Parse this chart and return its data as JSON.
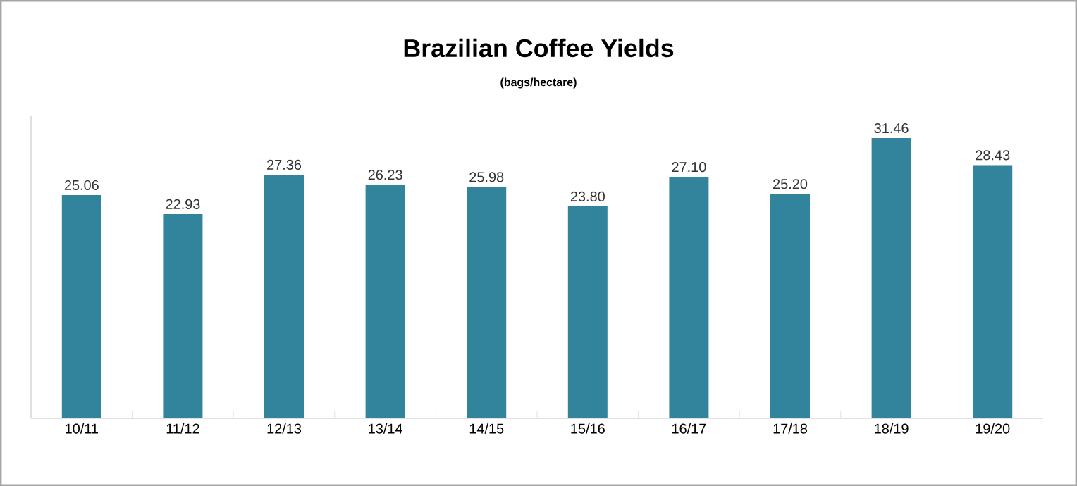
{
  "chart_data": {
    "type": "bar",
    "title": "Brazilian Coffee Yields",
    "subtitle": "(bags/hectare)",
    "categories": [
      "10/11",
      "11/12",
      "12/13",
      "13/14",
      "14/15",
      "15/16",
      "16/17",
      "17/18",
      "18/19",
      "19/20"
    ],
    "values": [
      25.06,
      22.93,
      27.36,
      26.23,
      25.98,
      23.8,
      27.1,
      25.2,
      31.46,
      28.43
    ],
    "value_labels": [
      "25.06",
      "22.93",
      "27.36",
      "26.23",
      "25.98",
      "23.80",
      "27.10",
      "25.20",
      "31.46",
      "28.43"
    ],
    "color": "#31849b",
    "ylim": [
      0,
      34
    ],
    "tick_labels": "x",
    "grid": false
  }
}
